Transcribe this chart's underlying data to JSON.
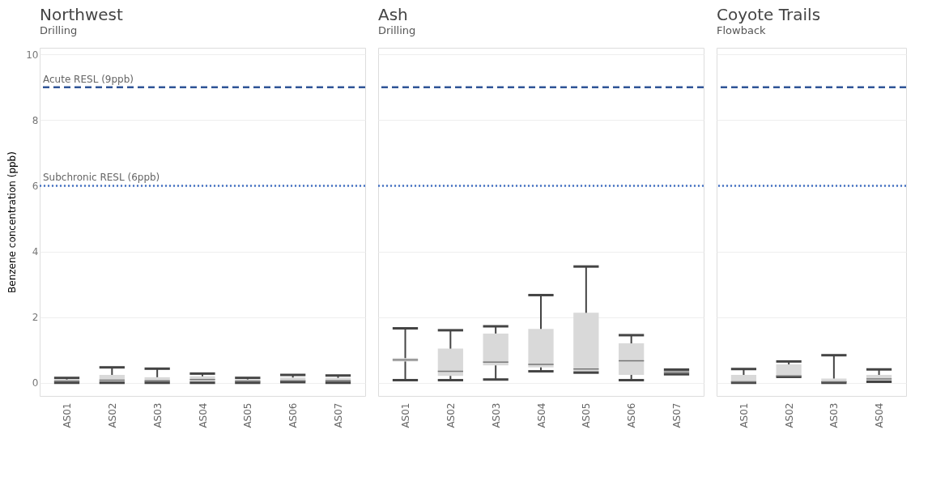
{
  "chart_data": [
    {
      "type": "box",
      "title": "Northwest",
      "subtitle": "Drilling",
      "ylabel": "Benzene concentration (ppb)",
      "categories": [
        "AS01",
        "AS02",
        "AS03",
        "AS04",
        "AS05",
        "AS06",
        "AS07"
      ],
      "ylim": [
        -0.4,
        10.2
      ],
      "yticks": [
        0,
        2,
        4,
        6,
        8,
        10
      ],
      "grid": "y",
      "series": [
        {
          "color": "#d9d9d9",
          "boxes": [
            {
              "low": 0,
              "q1": 0,
              "median": 0.05,
              "q3": 0.1,
              "high": 0.15
            },
            {
              "low": 0,
              "q1": 0.02,
              "median": 0.08,
              "q3": 0.24,
              "high": 0.47
            },
            {
              "low": 0,
              "q1": 0.02,
              "median": 0.06,
              "q3": 0.17,
              "high": 0.43
            },
            {
              "low": 0,
              "q1": 0.02,
              "median": 0.1,
              "q3": 0.2,
              "high": 0.28
            },
            {
              "low": 0,
              "q1": 0,
              "median": 0.05,
              "q3": 0.1,
              "high": 0.15
            },
            {
              "low": 0.02,
              "q1": 0.04,
              "median": 0.06,
              "q3": 0.16,
              "high": 0.24
            },
            {
              "low": 0,
              "q1": 0.02,
              "median": 0.06,
              "q3": 0.15,
              "high": 0.22
            }
          ]
        }
      ],
      "ref_lines": [
        {
          "axis": "y",
          "value": 9,
          "label": "Acute RESL (9ppb)",
          "color": "#2f5597",
          "line_style": "dashed"
        },
        {
          "axis": "y",
          "value": 6,
          "label": "Subchronic RESL (6ppb)",
          "color": "#4472c4",
          "line_style": "dotted"
        }
      ]
    },
    {
      "type": "box",
      "title": "Ash",
      "subtitle": "Drilling",
      "categories": [
        "AS01",
        "AS02",
        "AS03",
        "AS04",
        "AS05",
        "AS06",
        "AS07"
      ],
      "ylim": [
        -0.4,
        10.2
      ],
      "yticks": [
        0,
        2,
        4,
        6,
        8,
        10
      ],
      "grid": "y",
      "tick_labels": "x",
      "series": [
        {
          "color": "#d9d9d9",
          "boxes": [
            {
              "low": 0.08,
              "q1": 0.65,
              "median": 0.7,
              "q3": 0.75,
              "high": 1.66
            },
            {
              "low": 0.08,
              "q1": 0.21,
              "median": 0.35,
              "q3": 1.04,
              "high": 1.6
            },
            {
              "low": 0.1,
              "q1": 0.53,
              "median": 0.63,
              "q3": 1.5,
              "high": 1.72
            },
            {
              "low": 0.35,
              "q1": 0.47,
              "median": 0.56,
              "q3": 1.64,
              "high": 2.67
            },
            {
              "low": 0.31,
              "q1": 0.33,
              "median": 0.42,
              "q3": 2.13,
              "high": 3.54
            },
            {
              "low": 0.08,
              "q1": 0.24,
              "median": 0.67,
              "q3": 1.2,
              "high": 1.45
            },
            {
              "low": 0.26,
              "q1": 0.28,
              "median": 0.33,
              "q3": 0.38,
              "high": 0.4
            }
          ]
        }
      ],
      "ref_lines": [
        {
          "axis": "y",
          "value": 9,
          "color": "#2f5597",
          "line_style": "dashed"
        },
        {
          "axis": "y",
          "value": 6,
          "color": "#4472c4",
          "line_style": "dotted"
        }
      ]
    },
    {
      "type": "box",
      "title": "Coyote Trails",
      "subtitle": "Flowback",
      "categories": [
        "AS01",
        "AS02",
        "AS03",
        "AS04"
      ],
      "ylim": [
        -0.4,
        10.2
      ],
      "yticks": [
        0,
        2,
        4,
        6,
        8,
        10
      ],
      "grid": "y",
      "tick_labels": "x",
      "series": [
        {
          "color": "#d9d9d9",
          "boxes": [
            {
              "low": 0,
              "q1": 0.01,
              "median": 0.03,
              "q3": 0.24,
              "high": 0.42
            },
            {
              "low": 0.18,
              "q1": 0.19,
              "median": 0.21,
              "q3": 0.56,
              "high": 0.65
            },
            {
              "low": 0,
              "q1": 0.01,
              "median": 0.03,
              "q3": 0.13,
              "high": 0.84
            },
            {
              "low": 0.03,
              "q1": 0.03,
              "median": 0.12,
              "q3": 0.24,
              "high": 0.41
            }
          ]
        }
      ],
      "ref_lines": [
        {
          "axis": "y",
          "value": 9,
          "color": "#2f5597",
          "line_style": "dashed"
        },
        {
          "axis": "y",
          "value": 6,
          "color": "#4472c4",
          "line_style": "dotted"
        }
      ]
    }
  ]
}
